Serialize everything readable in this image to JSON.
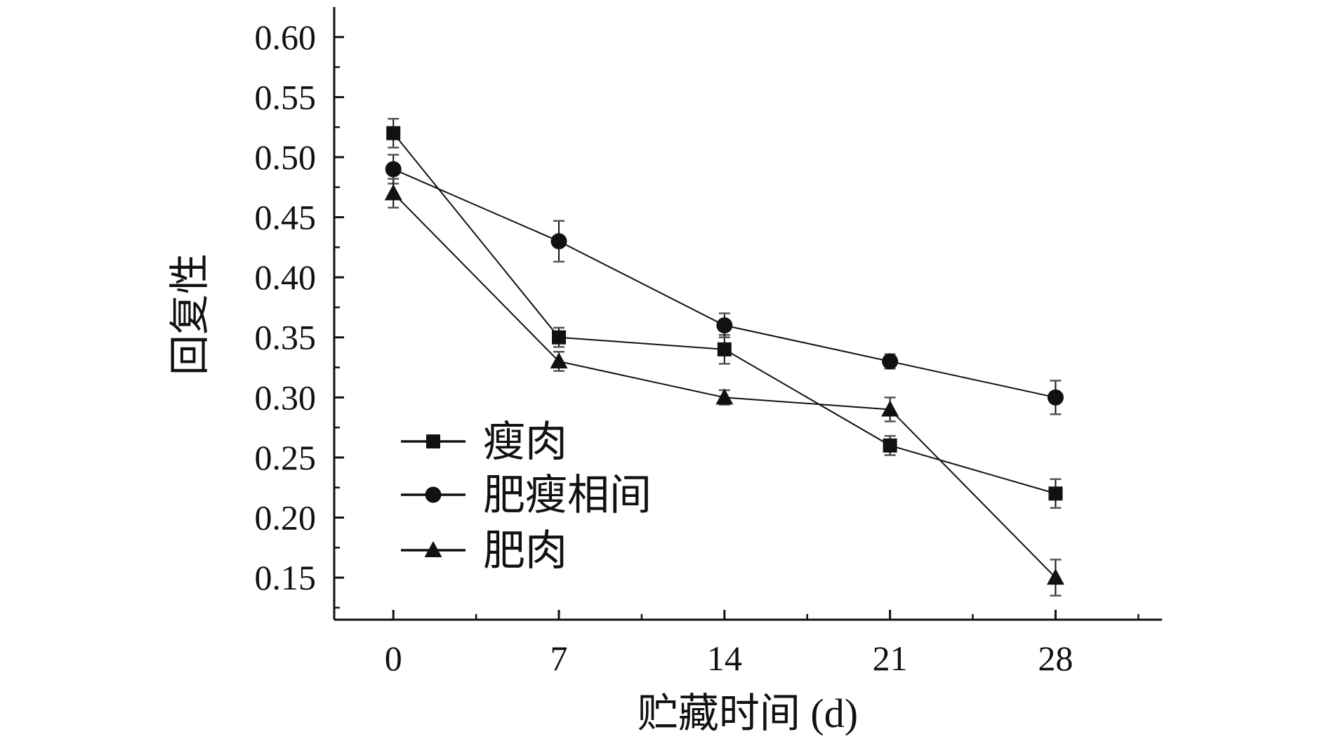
{
  "chart_data": {
    "type": "line",
    "title": "",
    "xlabel": "贮藏时间 (d)",
    "ylabel": "回复性",
    "x": [
      0,
      7,
      14,
      21,
      28
    ],
    "xticks": [
      "0",
      "7",
      "14",
      "21",
      "28"
    ],
    "yticks": [
      "0.15",
      "0.20",
      "0.25",
      "0.30",
      "0.35",
      "0.40",
      "0.45",
      "0.50",
      "0.55",
      "0.60"
    ],
    "xlim": [
      -2.5,
      32.5
    ],
    "ylim": [
      0.115,
      0.625
    ],
    "grid": false,
    "legend_position": "bottom-left",
    "series": [
      {
        "name": "瘦肉",
        "marker": "square",
        "values": [
          0.52,
          0.35,
          0.34,
          0.26,
          0.22
        ],
        "errors": [
          0.012,
          0.008,
          0.012,
          0.008,
          0.012
        ]
      },
      {
        "name": "肥瘦相间",
        "marker": "circle",
        "values": [
          0.49,
          0.43,
          0.36,
          0.33,
          0.3
        ],
        "errors": [
          0.012,
          0.017,
          0.01,
          0.006,
          0.014
        ]
      },
      {
        "name": "肥肉",
        "marker": "triangle",
        "values": [
          0.47,
          0.33,
          0.3,
          0.29,
          0.15
        ],
        "errors": [
          0.012,
          0.008,
          0.006,
          0.01,
          0.015
        ]
      }
    ],
    "colors": {
      "line": "#111111",
      "errorbar": "#555555"
    }
  }
}
